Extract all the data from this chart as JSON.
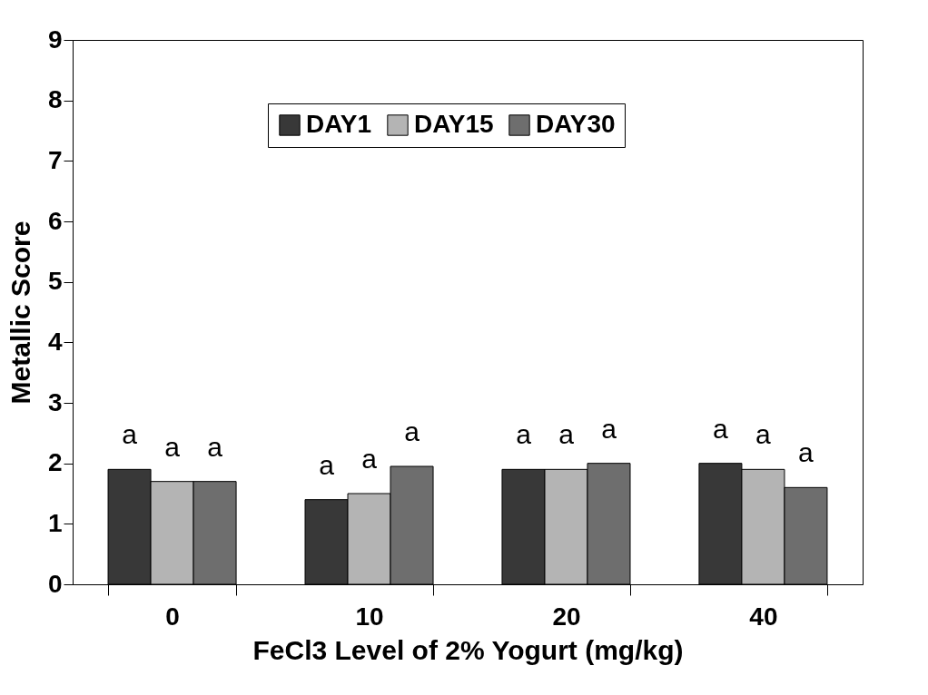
{
  "chart_data": {
    "type": "bar",
    "xlabel": "FeCl3 Level of 2% Yogurt (mg/kg)",
    "ylabel": "Metallic Score",
    "categories": [
      "0",
      "10",
      "20",
      "40"
    ],
    "series": [
      {
        "name": "DAY1",
        "color": "#383838",
        "values": [
          1.9,
          1.4,
          1.9,
          2.0
        ],
        "value_labels": [
          "a",
          "a",
          "a",
          "a"
        ]
      },
      {
        "name": "DAY15",
        "color": "#b4b4b4",
        "values": [
          1.7,
          1.5,
          1.9,
          1.9
        ],
        "value_labels": [
          "a",
          "a",
          "a",
          "a"
        ]
      },
      {
        "name": "DAY30",
        "color": "#6e6e6e",
        "values": [
          1.7,
          1.95,
          2.0,
          1.6
        ],
        "value_labels": [
          "a",
          "a",
          "a",
          "a"
        ]
      }
    ],
    "ylim": [
      0,
      9
    ],
    "yticks": [
      0,
      1,
      2,
      3,
      4,
      5,
      6,
      7,
      8,
      9
    ],
    "grid": false,
    "legend": "top"
  }
}
